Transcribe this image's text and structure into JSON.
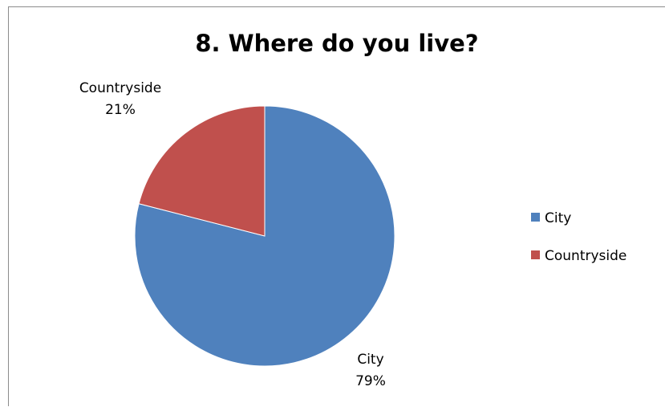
{
  "chart_data": {
    "type": "pie",
    "title": "8. Where do you live?",
    "categories": [
      "City",
      "Countryside"
    ],
    "values": [
      79,
      21
    ],
    "value_labels": [
      "79%",
      "21%"
    ],
    "colors": [
      "#4f81bd",
      "#c0504d"
    ],
    "legend_position": "right",
    "start_angle_deg": 0,
    "direction": "clockwise"
  }
}
